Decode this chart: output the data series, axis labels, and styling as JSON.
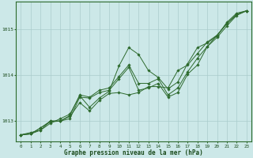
{
  "xlabel": "Graphe pression niveau de la mer (hPa)",
  "bg_color": "#cce8e8",
  "line_color": "#2d6a2d",
  "grid_color": "#aacccc",
  "axis_color": "#2d6a2d",
  "text_color": "#1a4a1a",
  "ylim": [
    1012.55,
    1015.6
  ],
  "xlim": [
    -0.5,
    23.5
  ],
  "yticks": [
    1013,
    1014,
    1015
  ],
  "xticks": [
    0,
    1,
    2,
    3,
    4,
    5,
    6,
    7,
    8,
    9,
    10,
    11,
    12,
    13,
    14,
    15,
    16,
    17,
    18,
    19,
    20,
    21,
    22,
    23
  ],
  "series": [
    [
      1012.7,
      1012.75,
      1012.8,
      1012.95,
      1013.05,
      1013.15,
      1013.55,
      1013.3,
      1013.5,
      1013.65,
      1014.2,
      1014.6,
      1014.45,
      1014.1,
      1013.95,
      1013.7,
      1013.85,
      1014.25,
      1014.6,
      1014.7,
      1014.85,
      1015.15,
      1015.35,
      1015.4
    ],
    [
      1012.7,
      1012.72,
      1012.85,
      1013.0,
      1013.0,
      1013.1,
      1013.4,
      1013.22,
      1013.45,
      1013.6,
      1013.62,
      1013.57,
      1013.62,
      1013.75,
      1013.75,
      1013.72,
      1014.1,
      1014.22,
      1014.47,
      1014.72,
      1014.87,
      1015.12,
      1015.32,
      1015.4
    ],
    [
      1012.7,
      1012.72,
      1012.85,
      1012.98,
      1013.0,
      1013.05,
      1013.52,
      1013.5,
      1013.62,
      1013.67,
      1013.92,
      1014.17,
      1013.67,
      1013.72,
      1013.82,
      1013.52,
      1013.62,
      1014.02,
      1014.22,
      1014.62,
      1014.82,
      1015.07,
      1015.3,
      1015.4
    ],
    [
      1012.7,
      1012.72,
      1012.8,
      1013.0,
      1013.0,
      1013.12,
      1013.57,
      1013.52,
      1013.67,
      1013.72,
      1013.97,
      1014.22,
      1013.82,
      1013.82,
      1013.92,
      1013.57,
      1013.72,
      1014.07,
      1014.37,
      1014.62,
      1014.87,
      1015.12,
      1015.32,
      1015.4
    ]
  ]
}
